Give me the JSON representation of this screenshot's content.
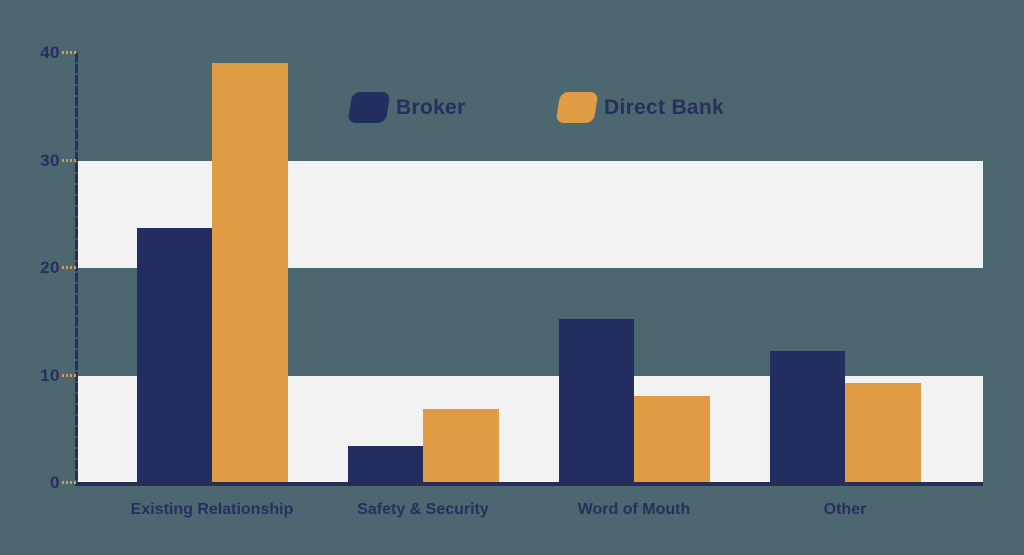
{
  "chart_data": {
    "type": "bar",
    "title": "",
    "categories": [
      "Existing Relationship",
      "Safety & Security",
      "Word of Mouth",
      "Other"
    ],
    "series": [
      {
        "name": "Broker",
        "color": "#222e60",
        "values": [
          23.7,
          3.4,
          15.3,
          12.3
        ]
      },
      {
        "name": "Direct Bank",
        "color": "#e09c44",
        "values": [
          39.1,
          6.9,
          8.1,
          9.3
        ]
      }
    ],
    "ylim": [
      0,
      40
    ],
    "y_ticks": [
      0,
      10,
      20,
      30,
      40
    ],
    "grid_bands": [
      [
        0,
        10
      ],
      [
        20,
        30
      ]
    ],
    "legend_position": "top-center",
    "xlabel": "",
    "ylabel": "",
    "colors": {
      "background": "#4c6770",
      "band": "#f2f2f3",
      "axis": "#272f55",
      "text": "#262f5f",
      "tick": "#d89a50"
    }
  }
}
